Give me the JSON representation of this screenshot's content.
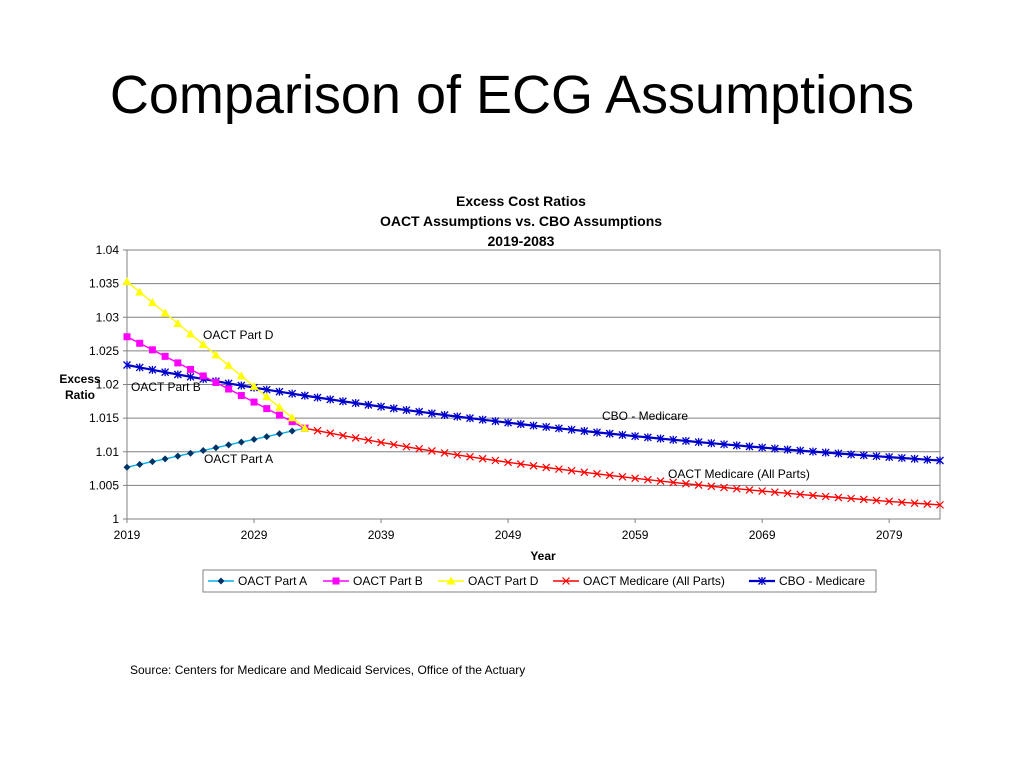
{
  "slide": {
    "title": "Comparison of ECG Assumptions",
    "source": "Source:  Centers for Medicare and Medicaid Services, Office of the Actuary"
  },
  "chart_data": {
    "type": "line",
    "title_lines": [
      "Excess Cost Ratios",
      "OACT Assumptions vs. CBO Assumptions",
      "2019-2083"
    ],
    "xlabel": "Year",
    "ylabel_lines": [
      "Excess",
      "Ratio"
    ],
    "x_tick_labels": [
      "2019",
      "2029",
      "2039",
      "2049",
      "2059",
      "2069",
      "2079"
    ],
    "y_tick_labels": [
      "1",
      "1.005",
      "1.01",
      "1.015",
      "1.02",
      "1.025",
      "1.03",
      "1.035",
      "1.04"
    ],
    "xlim": [
      2019,
      2083
    ],
    "ylim": [
      1.0,
      1.04
    ],
    "grid": "horizontal",
    "legend_position": "bottom",
    "series": [
      {
        "name": "OACT Part A",
        "color": "#00B0F0",
        "marker": "diamond",
        "marker_color": "#003366",
        "x": [
          2019,
          2033
        ],
        "y": [
          1.0077,
          1.0135
        ],
        "interp": "linear"
      },
      {
        "name": "OACT Part B",
        "color": "#FF00FF",
        "marker": "square",
        "marker_color": "#FF00FF",
        "x": [
          2019,
          2033
        ],
        "y": [
          1.0271,
          1.0135
        ],
        "interp": "linear"
      },
      {
        "name": "OACT Part D",
        "color": "#FFFF00",
        "marker": "triangle",
        "marker_color": "#FFFF00",
        "x": [
          2019,
          2033
        ],
        "y": [
          1.0353,
          1.0135
        ],
        "interp": "linear"
      },
      {
        "name": "OACT Medicare (All Parts)",
        "color": "#FF0000",
        "marker": "x",
        "marker_color": "#FF0000",
        "x": [
          2033,
          2083
        ],
        "y": [
          1.0135,
          1.0021
        ],
        "interp": "decay"
      },
      {
        "name": "CBO - Medicare",
        "color": "#0000CC",
        "marker": "star",
        "marker_color": "#0000CC",
        "x": [
          2019,
          2083
        ],
        "y": [
          1.0229,
          1.0087
        ],
        "interp": "decay"
      }
    ],
    "annotations": [
      "OACT Part D",
      "OACT Part B",
      "OACT Part A",
      "CBO - Medicare",
      "OACT Medicare (All Parts)"
    ]
  }
}
